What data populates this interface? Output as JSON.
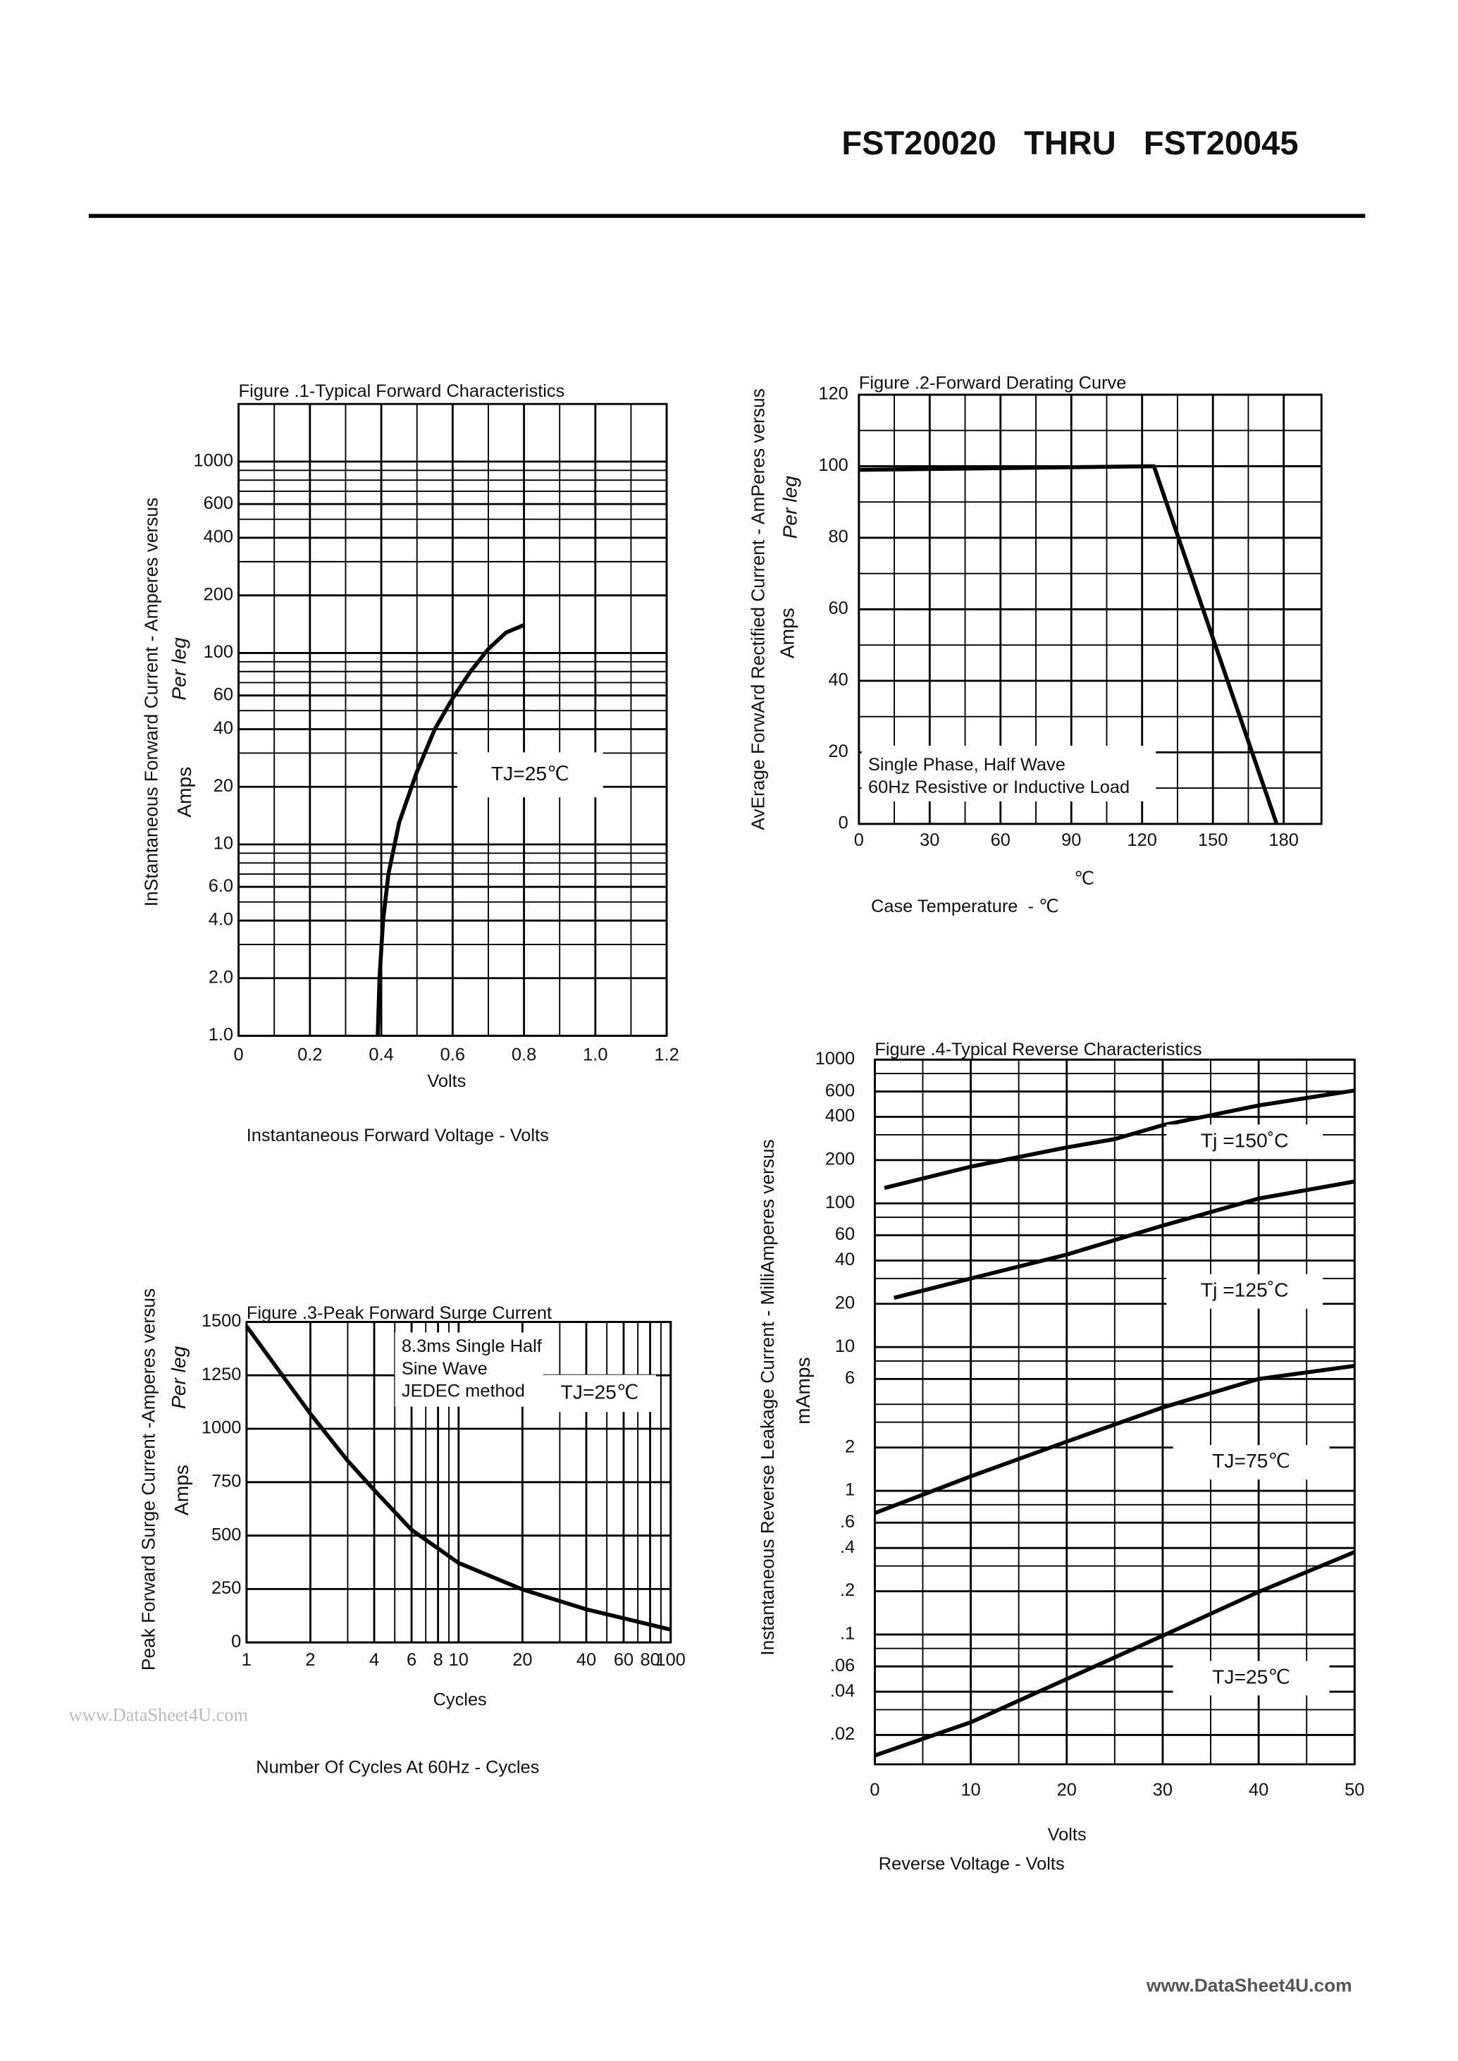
{
  "header": {
    "title": "FST20020   THRU   FST20045"
  },
  "watermark": "www.DataSheet4U.com",
  "footer": "www.DataSheet4U.com",
  "chart_data": [
    {
      "type": "line",
      "title": "Figure .1-Typical Forward Characteristics",
      "y_label": "InStantaneous Forward Current  - Amperes versus",
      "y_label_note": "Per leg",
      "y_unit": "Amps",
      "x_unit": "Volts",
      "x_label": "Instantaneous Forward Voltage - Volts",
      "xlim": [
        0,
        1.2
      ],
      "ylim": [
        1,
        2000
      ],
      "ylog": true,
      "grid": true,
      "xticks": [
        0,
        0.2,
        0.4,
        0.6,
        0.8,
        {
          "value": 1,
          "label": "1.0"
        },
        1.2
      ],
      "x_minor_ticks": [
        0.1,
        0.3,
        0.5,
        0.7,
        0.9,
        1.1
      ],
      "yticks": [
        {
          "value": 1,
          "label": "1.0"
        },
        {
          "value": 2,
          "label": "2.0"
        },
        {
          "value": 4,
          "label": "4.0"
        },
        {
          "value": 6,
          "label": "6.0"
        },
        10,
        20,
        40,
        60,
        100,
        200,
        400,
        600,
        1000
      ],
      "y_minor_ticks": [
        3,
        5,
        7,
        8,
        9,
        30,
        50,
        70,
        80,
        90,
        300,
        500,
        700,
        800,
        900
      ],
      "annotation": "TJ=25℃",
      "series": [
        {
          "color": "#000000",
          "x": [
            0.39,
            0.395,
            0.405,
            0.42,
            0.45,
            0.5,
            0.55,
            0.6,
            0.65,
            0.7,
            0.75,
            0.8
          ],
          "values": [
            1,
            2,
            4,
            7,
            13,
            24,
            40,
            58,
            80,
            105,
            128,
            140
          ]
        }
      ]
    },
    {
      "type": "line",
      "title": "Figure .2-Forward Derating Curve",
      "y_label": "AvErage ForwArd Rectified Current  - AmPeres versus",
      "y_label_note": "Per leg",
      "y_unit": "Amps",
      "x_unit": "℃",
      "x_label": "Case Temperature  - ℃",
      "xlim": [
        0,
        196
      ],
      "ylim": [
        0,
        120
      ],
      "grid": true,
      "xticks": [
        0,
        30,
        60,
        90,
        120,
        150,
        180
      ],
      "x_minor_ticks": [
        15,
        45,
        75,
        105,
        135,
        165
      ],
      "yticks": [
        0,
        20,
        40,
        60,
        80,
        100,
        120
      ],
      "y_minor_ticks": [
        10,
        30,
        50,
        70,
        90,
        110
      ],
      "note": [
        "Single Phase, Half Wave",
        "60Hz Resistive or Inductive Load"
      ],
      "series": [
        {
          "color": "#000000",
          "x": [
            0,
            125,
            177
          ],
          "values": [
            99,
            100,
            0
          ]
        }
      ]
    },
    {
      "type": "line",
      "title": "Figure .3-Peak Forward Surge Current",
      "y_label": "Peak Forward Surge Current -Amperes versus",
      "y_label_note": "Per leg",
      "y_unit": "Amps",
      "x_unit": "Cycles",
      "x_label": "Number Of Cycles At 60Hz - Cycles",
      "xlim": [
        1,
        100
      ],
      "xlog": true,
      "ylim": [
        0,
        1500
      ],
      "grid": true,
      "xticks": [
        1,
        2,
        4,
        6,
        8,
        10,
        20,
        40,
        60,
        80,
        100
      ],
      "x_minor_ticks": [
        3,
        5,
        7,
        9,
        30,
        50,
        70,
        90
      ],
      "yticks": [
        0,
        250,
        500,
        750,
        1000,
        1250,
        1500
      ],
      "y_minor_ticks": [],
      "note": [
        "8.3ms Single Half",
        "Sine Wave",
        "JEDEC method"
      ],
      "annotation": "TJ=25℃",
      "series": [
        {
          "color": "#000000",
          "x": [
            1,
            2,
            3,
            4,
            6,
            10,
            20,
            40,
            100
          ],
          "values": [
            1480,
            1070,
            850,
            713,
            527,
            372,
            248,
            155,
            60
          ]
        }
      ]
    },
    {
      "type": "line",
      "title": "Figure .4-Typical Reverse Characteristics",
      "y_label": "Instantaneous Reverse Leakage Current  - MilliAmperes versus",
      "y_unit": "mAmps",
      "x_unit": "Volts",
      "x_label": "Reverse Voltage - Volts",
      "xlim": [
        0,
        50
      ],
      "ylim": [
        0.0125,
        1000
      ],
      "ylog": true,
      "grid": true,
      "xticks": [
        0,
        10,
        20,
        30,
        40,
        50
      ],
      "x_minor_ticks": [
        5,
        15,
        25,
        35,
        45
      ],
      "yticks": [
        1000,
        600,
        400,
        200,
        100,
        60,
        40,
        20,
        10,
        6,
        2,
        1,
        {
          "value": 0.6,
          "label": ".6"
        },
        {
          "value": 0.4,
          "label": ".4"
        },
        {
          "value": 0.2,
          "label": ".2"
        },
        {
          "value": 0.1,
          "label": ".1"
        },
        {
          "value": 0.06,
          "label": ".06"
        },
        {
          "value": 0.04,
          "label": ".04"
        },
        {
          "value": 0.02,
          "label": ".02"
        }
      ],
      "y_minor_ticks": [
        800,
        300,
        80,
        30,
        8,
        4,
        3,
        0.8,
        0.3,
        0.08,
        0.03
      ],
      "series": [
        {
          "name": "Tj =150˚C",
          "color": "#000000",
          "x": [
            1,
            10,
            20,
            25,
            30,
            40,
            50
          ],
          "values": [
            128,
            180,
            245,
            280,
            350,
            480,
            610
          ]
        },
        {
          "name": "Tj =125˚C",
          "color": "#000000",
          "x": [
            2,
            10,
            20,
            30,
            40,
            50
          ],
          "values": [
            22,
            30,
            44,
            70,
            108,
            142
          ]
        },
        {
          "name": "TJ=75℃",
          "color": "#000000",
          "x": [
            0,
            10,
            20,
            30,
            40,
            50
          ],
          "values": [
            0.7,
            1.26,
            2.2,
            3.8,
            6,
            7.4
          ]
        },
        {
          "name": "TJ=25℃",
          "color": "#000000",
          "x": [
            0,
            10,
            20,
            30,
            40,
            50
          ],
          "values": [
            0.0144,
            0.0245,
            0.049,
            0.098,
            0.198,
            0.375
          ]
        }
      ]
    }
  ]
}
